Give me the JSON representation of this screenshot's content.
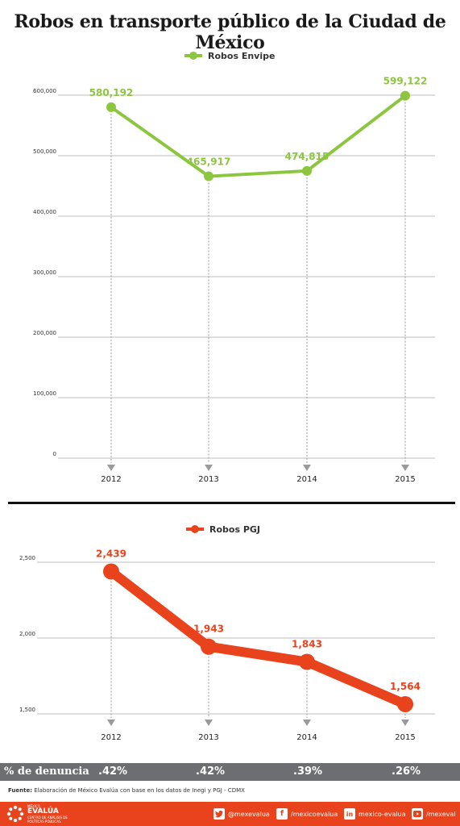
{
  "title": "Robos en transporte público de la Ciudad de México",
  "chart_data": [
    {
      "type": "line",
      "legend": "Robos Envipe",
      "color": "#8cc63f",
      "categories": [
        "2012",
        "2013",
        "2014",
        "2015"
      ],
      "series": [
        {
          "name": "Robos Envipe",
          "values": [
            580192,
            465917,
            474815,
            599122
          ]
        }
      ],
      "data_labels": [
        "580,192",
        "465,917",
        "474,815",
        "599,122"
      ],
      "yticks": [
        0,
        100000,
        200000,
        300000,
        400000,
        500000,
        600000
      ],
      "ytick_labels": [
        "0",
        "100,000",
        "200,000",
        "300,000",
        "400,000",
        "500,000",
        "600,000"
      ],
      "ylim": [
        0,
        600000
      ],
      "grid": true,
      "legend_position": "top-center"
    },
    {
      "type": "line",
      "legend": "Robos PGJ",
      "color": "#e8431c",
      "categories": [
        "2012",
        "2013",
        "2014",
        "2015"
      ],
      "series": [
        {
          "name": "Robos PGJ",
          "values": [
            2439,
            1943,
            1843,
            1564
          ]
        }
      ],
      "data_labels": [
        "2,439",
        "1,943",
        "1,843",
        "1,564"
      ],
      "yticks": [
        1500,
        2000,
        2500
      ],
      "ytick_labels": [
        "1,500",
        "2,000",
        "2,500"
      ],
      "ylim": [
        1500,
        2500
      ],
      "grid": true,
      "legend_position": "top-center"
    }
  ],
  "denuncia": {
    "label": "% de denuncia",
    "values": [
      ".42%",
      ".42%",
      ".39%",
      ".26%"
    ]
  },
  "source": {
    "bold": "Fuente:",
    "text": " Elaboración de México Evalúa con base en los datos de Inegi y PGJ - CDMX"
  },
  "footer": {
    "logo_top": "MÉXICO",
    "logo_main": "EVALÚA",
    "logo_sub": "CENTRO DE ANÁLISIS DE POLÍTICAS PÚBLICAS",
    "twitter": "@mexevalua",
    "facebook": "/mexicoevalua",
    "linkedin": "mexico-evalua",
    "youtube": "/mexeval",
    "twitter_icon": "twitter-icon",
    "facebook_icon": "facebook-icon",
    "linkedin_icon": "linkedin-icon",
    "youtube_icon": "youtube-icon"
  }
}
